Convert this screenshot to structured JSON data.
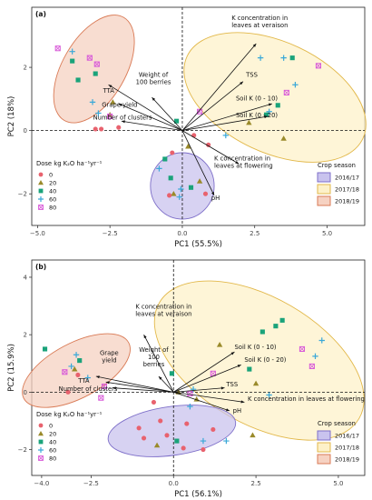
{
  "legend": {
    "dose_title": "Dose kg K₂O ha⁻¹yr⁻¹",
    "doses": [
      {
        "label": "0",
        "color": "#e8626e",
        "marker": "circle"
      },
      {
        "label": "20",
        "color": "#9a8a2a",
        "marker": "triangle"
      },
      {
        "label": "40",
        "color": "#1aa37a",
        "marker": "square"
      },
      {
        "label": "60",
        "color": "#3aa8d8",
        "marker": "plus"
      },
      {
        "label": "80",
        "color": "#d85ad8",
        "marker": "boxcross"
      }
    ],
    "season_title": "Crop season",
    "seasons": [
      {
        "label": "2016/17",
        "fill": "#c9c3ee",
        "stroke": "#7e6fc9"
      },
      {
        "label": "2017/18",
        "fill": "#fdf1c9",
        "stroke": "#e2b84a"
      },
      {
        "label": "2018/19",
        "fill": "#f6d2c2",
        "stroke": "#d97a55"
      }
    ]
  },
  "chart_data": [
    {
      "type": "scatter",
      "panel_label": "(a)",
      "xlabel": "PC1 (55.5%)",
      "ylabel": "PC2 (18%)",
      "xlim": [
        -5.2,
        6.3
      ],
      "ylim": [
        -3.0,
        3.9
      ],
      "xticks": [
        -5.0,
        -2.5,
        0.0,
        2.5,
        5.0
      ],
      "xtick_labels": [
        "−5.0",
        "−2.5",
        "0.0",
        "2.5",
        "5.0"
      ],
      "yticks": [
        -2,
        0,
        2
      ],
      "ytick_labels": [
        "−2",
        "0",
        "2"
      ],
      "ellipses": [
        {
          "season": "2018/19",
          "cx": -3.05,
          "cy": 1.95,
          "rx": 2.05,
          "ry": 1.0,
          "angle": -60
        },
        {
          "season": "2017/18",
          "cx": 3.2,
          "cy": 1.05,
          "rx": 3.35,
          "ry": 1.75,
          "angle": 25
        },
        {
          "season": "2016/17",
          "cx": 0.0,
          "cy": -1.75,
          "rx": 1.1,
          "ry": 1.05,
          "angle": 0
        }
      ],
      "vectors": [
        {
          "label": "K concentration in leaves at veraison",
          "x": 2.55,
          "y": 2.75
        },
        {
          "label": "TSS",
          "x": 2.1,
          "y": 1.55
        },
        {
          "label": "Weight of 100 berries",
          "x": -1.05,
          "y": 1.05
        },
        {
          "label": "TTA",
          "x": -2.55,
          "y": 1.45
        },
        {
          "label": "Grape yield",
          "x": -2.2,
          "y": 0.85
        },
        {
          "label": "Number of clusters",
          "x": -2.1,
          "y": 0.3
        },
        {
          "label": "Soil K (0 - 10)",
          "x": 3.1,
          "y": 0.85
        },
        {
          "label": "Soil K (0 - 20)",
          "x": 2.95,
          "y": 0.45
        },
        {
          "label": "K concentration in leaves at flowering",
          "x": 1.95,
          "y": -1.05
        },
        {
          "label": "pH",
          "x": 1.1,
          "y": -2.05
        }
      ],
      "vector_labels": [
        {
          "lines": [
            "K concentration in",
            "leaves at veraison"
          ],
          "x": 1.7,
          "y": 3.5,
          "anchor": "start"
        },
        {
          "lines": [
            "TSS"
          ],
          "x": 2.2,
          "y": 1.7,
          "anchor": "start"
        },
        {
          "lines": [
            "Weight of",
            "100 berries"
          ],
          "x": -1.0,
          "y": 1.7,
          "anchor": "middle"
        },
        {
          "lines": [
            "TTA"
          ],
          "x": -2.35,
          "y": 1.2,
          "anchor": "end"
        },
        {
          "lines": [
            "Grape yield"
          ],
          "x": -1.55,
          "y": 0.75,
          "anchor": "end"
        },
        {
          "lines": [
            "Number of clusters"
          ],
          "x": -1.05,
          "y": 0.35,
          "anchor": "end"
        },
        {
          "lines": [
            "Soil K (0 - 10)"
          ],
          "x": 1.85,
          "y": 0.95,
          "anchor": "start"
        },
        {
          "lines": [
            "Soil K (0 - 20)"
          ],
          "x": 1.85,
          "y": 0.42,
          "anchor": "start"
        },
        {
          "lines": [
            "K concentration in",
            "leaves at flowering"
          ],
          "x": 1.1,
          "y": -0.95,
          "anchor": "start"
        },
        {
          "lines": [
            "pH"
          ],
          "x": 1.0,
          "y": -2.2,
          "anchor": "start"
        }
      ],
      "points": [
        {
          "d": "80",
          "x": -4.3,
          "y": 2.6
        },
        {
          "d": "80",
          "x": -3.2,
          "y": 2.3
        },
        {
          "d": "80",
          "x": -2.95,
          "y": 2.1
        },
        {
          "d": "40",
          "x": -3.8,
          "y": 2.2
        },
        {
          "d": "40",
          "x": -3.6,
          "y": 1.6
        },
        {
          "d": "40",
          "x": -3.0,
          "y": 1.8
        },
        {
          "d": "60",
          "x": -3.8,
          "y": 2.5
        },
        {
          "d": "60",
          "x": -3.1,
          "y": 0.9
        },
        {
          "d": "60",
          "x": -2.9,
          "y": 0.55
        },
        {
          "d": "20",
          "x": -2.4,
          "y": 0.9
        },
        {
          "d": "20",
          "x": -2.5,
          "y": 0.5
        },
        {
          "d": "0",
          "x": -3.0,
          "y": 0.05
        },
        {
          "d": "0",
          "x": -2.8,
          "y": 0.05
        },
        {
          "d": "80",
          "x": -2.5,
          "y": 0.45
        },
        {
          "d": "0",
          "x": -2.2,
          "y": 0.1
        },
        {
          "d": "60",
          "x": 2.7,
          "y": 2.3
        },
        {
          "d": "60",
          "x": 3.5,
          "y": 2.3
        },
        {
          "d": "40",
          "x": 3.8,
          "y": 2.3
        },
        {
          "d": "80",
          "x": 4.7,
          "y": 2.05
        },
        {
          "d": "60",
          "x": 3.9,
          "y": 1.45
        },
        {
          "d": "80",
          "x": 3.6,
          "y": 1.2
        },
        {
          "d": "40",
          "x": 3.3,
          "y": 0.8
        },
        {
          "d": "60",
          "x": 3.0,
          "y": 0.6
        },
        {
          "d": "20",
          "x": 2.3,
          "y": 0.25
        },
        {
          "d": "40",
          "x": 2.9,
          "y": 0.5
        },
        {
          "d": "20",
          "x": 3.5,
          "y": -0.25
        },
        {
          "d": "60",
          "x": 1.5,
          "y": -0.15
        },
        {
          "d": "0",
          "x": 0.9,
          "y": -0.45
        },
        {
          "d": "0",
          "x": 0.4,
          "y": -0.15
        },
        {
          "d": "40",
          "x": -0.2,
          "y": 0.3
        },
        {
          "d": "80",
          "x": 0.6,
          "y": 0.6
        },
        {
          "d": "20",
          "x": 0.2,
          "y": -0.5
        },
        {
          "d": "0",
          "x": -0.35,
          "y": -0.7
        },
        {
          "d": "40",
          "x": -0.6,
          "y": -0.9
        },
        {
          "d": "60",
          "x": -0.8,
          "y": -1.2
        },
        {
          "d": "40",
          "x": -0.4,
          "y": -1.5
        },
        {
          "d": "20",
          "x": 0.6,
          "y": -1.6
        },
        {
          "d": "40",
          "x": 0.3,
          "y": -1.8
        },
        {
          "d": "60",
          "x": -0.1,
          "y": -2.1
        },
        {
          "d": "20",
          "x": -0.3,
          "y": -2.0
        },
        {
          "d": "0",
          "x": 0.8,
          "y": -2.0
        },
        {
          "d": "0",
          "x": -0.45,
          "y": -2.05
        },
        {
          "d": "60",
          "x": -0.05,
          "y": -1.85
        }
      ]
    },
    {
      "type": "scatter",
      "panel_label": "(b)",
      "xlabel": "PC1 (56.1%)",
      "ylabel": "PC2 (15.9%)",
      "xlim": [
        -4.3,
        5.8
      ],
      "ylim": [
        -2.9,
        4.6
      ],
      "xticks": [
        -4.0,
        -2.5,
        0.0,
        2.5,
        5.0
      ],
      "xtick_labels": [
        "−4.0",
        "−2.5",
        "0.0",
        "2.5",
        "5.0"
      ],
      "yticks": [
        -2,
        0,
        2,
        4
      ],
      "ytick_labels": [
        "−2",
        "0",
        "2",
        "4"
      ],
      "ellipses": [
        {
          "season": "2018/19",
          "cx": -2.95,
          "cy": 0.75,
          "rx": 1.8,
          "ry": 0.95,
          "angle": -28
        },
        {
          "season": "2017/18",
          "cx": 2.6,
          "cy": 1.1,
          "rx": 3.5,
          "ry": 2.2,
          "angle": 30
        },
        {
          "season": "2016/17",
          "cx": -0.05,
          "cy": -1.35,
          "rx": 1.95,
          "ry": 0.85,
          "angle": -8
        }
      ],
      "vectors": [
        {
          "label": "K concentration in leaves at veraison",
          "x": -0.9,
          "y": 2.0
        },
        {
          "label": "Grape yield",
          "x": -2.35,
          "y": 0.55
        },
        {
          "label": "TTA",
          "x": -2.05,
          "y": 0.35
        },
        {
          "label": "Number of clusters",
          "x": -1.85,
          "y": 0.15
        },
        {
          "label": "Weight of 100 berries",
          "x": -0.45,
          "y": 0.55
        },
        {
          "label": "Soil K (0 - 10)",
          "x": 1.85,
          "y": 1.4
        },
        {
          "label": "Soil K (0 - 20)",
          "x": 2.05,
          "y": 0.95
        },
        {
          "label": "TSS",
          "x": 1.55,
          "y": 0.15
        },
        {
          "label": "K concentration in leaves at flowering",
          "x": 2.15,
          "y": -0.35
        },
        {
          "label": "pH",
          "x": 1.7,
          "y": -0.65
        }
      ],
      "vector_labels": [
        {
          "lines": [
            "K concentration in",
            "leaves at veraison"
          ],
          "x": -0.3,
          "y": 2.9,
          "anchor": "middle"
        },
        {
          "lines": [
            "Grape",
            "yield"
          ],
          "x": -1.95,
          "y": 1.3,
          "anchor": "middle"
        },
        {
          "lines": [
            "TTA"
          ],
          "x": -2.55,
          "y": 0.32,
          "anchor": "end"
        },
        {
          "lines": [
            "Number of clusters"
          ],
          "x": -1.7,
          "y": 0.05,
          "anchor": "end"
        },
        {
          "lines": [
            "Weight of",
            "100",
            "berries"
          ],
          "x": -0.6,
          "y": 1.4,
          "anchor": "middle"
        },
        {
          "lines": [
            "Soil K (0 - 10)"
          ],
          "x": 1.85,
          "y": 1.5,
          "anchor": "start"
        },
        {
          "lines": [
            "Soil K (0 - 20)"
          ],
          "x": 2.15,
          "y": 1.05,
          "anchor": "start"
        },
        {
          "lines": [
            "TSS"
          ],
          "x": 1.6,
          "y": 0.2,
          "anchor": "start"
        },
        {
          "lines": [
            "K concentration in leaves at flowering"
          ],
          "x": 2.25,
          "y": -0.3,
          "anchor": "start"
        },
        {
          "lines": [
            "pH"
          ],
          "x": 1.8,
          "y": -0.72,
          "anchor": "start"
        }
      ],
      "points": [
        {
          "d": "40",
          "x": -3.9,
          "y": 1.5
        },
        {
          "d": "60",
          "x": -2.95,
          "y": 1.3
        },
        {
          "d": "60",
          "x": -3.1,
          "y": 0.9
        },
        {
          "d": "40",
          "x": -2.85,
          "y": 1.1
        },
        {
          "d": "20",
          "x": -3.0,
          "y": 0.8
        },
        {
          "d": "80",
          "x": -3.3,
          "y": 0.7
        },
        {
          "d": "0",
          "x": -2.9,
          "y": 0.6
        },
        {
          "d": "60",
          "x": -2.6,
          "y": 0.5
        },
        {
          "d": "80",
          "x": -2.2,
          "y": -0.2
        },
        {
          "d": "0",
          "x": -3.2,
          "y": 0.0
        },
        {
          "d": "80",
          "x": -2.1,
          "y": 0.2
        },
        {
          "d": "60",
          "x": 4.5,
          "y": 1.8
        },
        {
          "d": "40",
          "x": 3.1,
          "y": 2.3
        },
        {
          "d": "40",
          "x": 3.3,
          "y": 2.5
        },
        {
          "d": "40",
          "x": 2.7,
          "y": 2.1
        },
        {
          "d": "80",
          "x": 3.9,
          "y": 1.5
        },
        {
          "d": "60",
          "x": 4.3,
          "y": 1.25
        },
        {
          "d": "80",
          "x": 4.2,
          "y": 0.9
        },
        {
          "d": "20",
          "x": 1.4,
          "y": 1.65
        },
        {
          "d": "40",
          "x": 2.3,
          "y": 0.8
        },
        {
          "d": "20",
          "x": 2.5,
          "y": 0.3
        },
        {
          "d": "80",
          "x": 1.2,
          "y": 0.65
        },
        {
          "d": "60",
          "x": 2.9,
          "y": -0.1
        },
        {
          "d": "40",
          "x": -0.05,
          "y": 0.65
        },
        {
          "d": "20",
          "x": 0.15,
          "y": 0.0
        },
        {
          "d": "60",
          "x": 0.6,
          "y": 0.1
        },
        {
          "d": "80",
          "x": 0.5,
          "y": -0.05
        },
        {
          "d": "20",
          "x": 0.7,
          "y": -0.25
        },
        {
          "d": "60",
          "x": 0.5,
          "y": -0.5
        },
        {
          "d": "0",
          "x": -0.6,
          "y": -0.35
        },
        {
          "d": "0",
          "x": -0.4,
          "y": -1.0
        },
        {
          "d": "0",
          "x": 0.4,
          "y": -1.1
        },
        {
          "d": "0",
          "x": -0.9,
          "y": -1.6
        },
        {
          "d": "0",
          "x": -0.2,
          "y": -1.5
        },
        {
          "d": "40",
          "x": 0.1,
          "y": -1.7
        },
        {
          "d": "60",
          "x": 0.9,
          "y": -1.7
        },
        {
          "d": "60",
          "x": 1.6,
          "y": -1.7
        },
        {
          "d": "0",
          "x": 0.9,
          "y": -2.0
        },
        {
          "d": "0",
          "x": 1.2,
          "y": -1.3
        },
        {
          "d": "20",
          "x": -0.5,
          "y": -1.85
        },
        {
          "d": "0",
          "x": -1.05,
          "y": -1.25
        },
        {
          "d": "20",
          "x": 2.4,
          "y": -1.5
        },
        {
          "d": "0",
          "x": 0.3,
          "y": -1.95
        }
      ]
    }
  ]
}
